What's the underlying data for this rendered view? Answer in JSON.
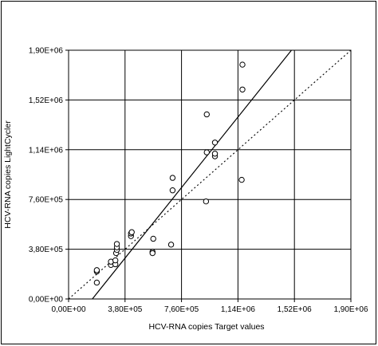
{
  "chart_data": {
    "type": "scatter",
    "xlabel": "HCV-RNA copies   Target values",
    "ylabel": "HCV-RNA copies  LightCycler",
    "xlim": [
      0,
      1900000
    ],
    "ylim": [
      0,
      1900000
    ],
    "x_tick_labels": [
      "0,00E+00",
      "3,80E+05",
      "7,60E+05",
      "1,14E+06",
      "1,52E+06",
      "1,90E+06"
    ],
    "y_tick_labels": [
      "0,00E+00",
      "3,80E+05",
      "7,60E+05",
      "1,14E+06",
      "1,52E+06",
      "1,90E+06"
    ],
    "x_ticks": [
      0,
      380000,
      760000,
      1140000,
      1520000,
      1900000
    ],
    "y_ticks": [
      0,
      380000,
      760000,
      1140000,
      1520000,
      1900000
    ],
    "grid": true,
    "points": [
      {
        "x": 190000,
        "y": 125000
      },
      {
        "x": 190000,
        "y": 210000
      },
      {
        "x": 190000,
        "y": 220000
      },
      {
        "x": 285000,
        "y": 260000
      },
      {
        "x": 285000,
        "y": 285000
      },
      {
        "x": 315000,
        "y": 265000
      },
      {
        "x": 315000,
        "y": 295000
      },
      {
        "x": 320000,
        "y": 350000
      },
      {
        "x": 325000,
        "y": 375000
      },
      {
        "x": 325000,
        "y": 395000
      },
      {
        "x": 325000,
        "y": 420000
      },
      {
        "x": 420000,
        "y": 480000
      },
      {
        "x": 420000,
        "y": 500000
      },
      {
        "x": 425000,
        "y": 510000
      },
      {
        "x": 565000,
        "y": 360000
      },
      {
        "x": 565000,
        "y": 350000
      },
      {
        "x": 570000,
        "y": 460000
      },
      {
        "x": 690000,
        "y": 415000
      },
      {
        "x": 700000,
        "y": 830000
      },
      {
        "x": 700000,
        "y": 925000
      },
      {
        "x": 925000,
        "y": 745000
      },
      {
        "x": 930000,
        "y": 1120000
      },
      {
        "x": 930000,
        "y": 1410000
      },
      {
        "x": 985000,
        "y": 1090000
      },
      {
        "x": 985000,
        "y": 1110000
      },
      {
        "x": 985000,
        "y": 1195000
      },
      {
        "x": 1165000,
        "y": 910000
      },
      {
        "x": 1170000,
        "y": 1600000
      },
      {
        "x": 1170000,
        "y": 1790000
      }
    ],
    "regression_line": {
      "style": "solid",
      "x": [
        160000,
        1500000
      ],
      "y": [
        0,
        1900000
      ]
    },
    "identity_line": {
      "style": "dotted",
      "x": [
        0,
        1900000
      ],
      "y": [
        0,
        1900000
      ]
    }
  }
}
